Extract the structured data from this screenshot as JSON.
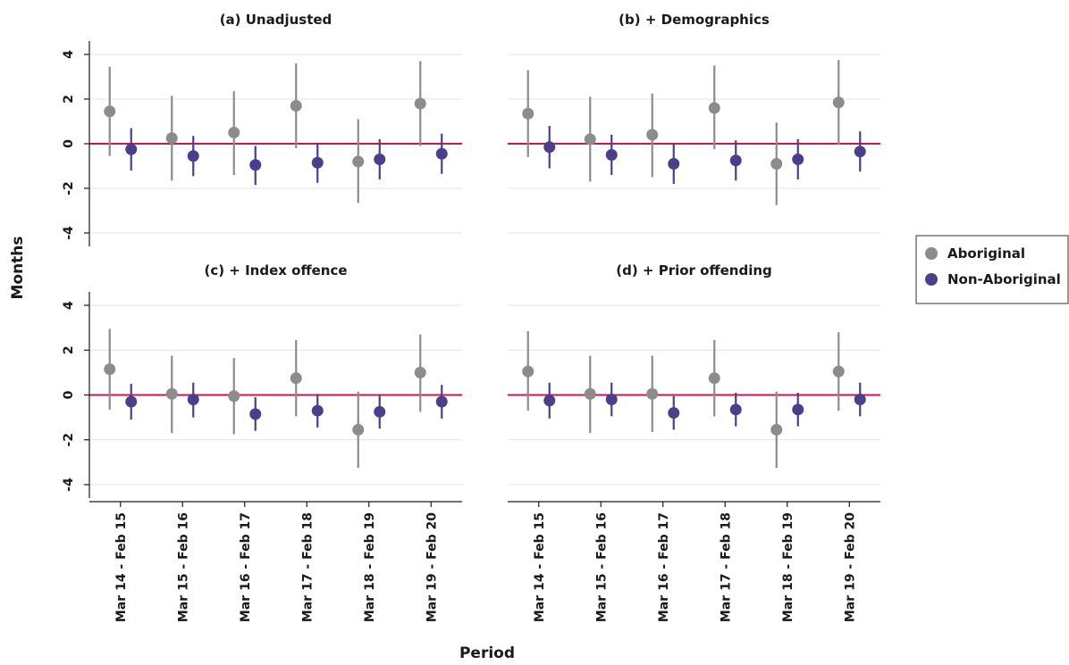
{
  "chart_data": {
    "type": "scatter",
    "subtype": "point-with-error-bars",
    "ylabel": "Months",
    "xlabel": "Period",
    "ylim": [
      -4.6,
      4.6
    ],
    "yticks": [
      -4,
      -2,
      0,
      2,
      4
    ],
    "ytick_labels": [
      "-4",
      "-2",
      "0",
      "2",
      "4"
    ],
    "categories": [
      "Mar 14 - Feb 15",
      "Mar 15 - Feb 16",
      "Mar 16 - Feb 17",
      "Mar 17 - Feb 18",
      "Mar 18 - Feb 19",
      "Mar 19 - Feb 20"
    ],
    "reference_line": 0,
    "grid": true,
    "legend_position": "right",
    "colors": {
      "Aboriginal": "#8c8c8c",
      "Non-Aboriginal": "#4b3f8c",
      "reference": "#c8174f",
      "grid": "#e4e4e4",
      "axis": "#1a1a1a"
    },
    "legend": [
      "Aboriginal",
      "Non-Aboriginal"
    ],
    "panels": [
      {
        "title": "(a) Unadjusted",
        "series": [
          {
            "name": "Aboriginal",
            "values": [
              1.45,
              0.25,
              0.5,
              1.7,
              -0.8,
              1.8
            ],
            "lower": [
              -0.55,
              -1.65,
              -1.4,
              -0.2,
              -2.65,
              -0.1
            ],
            "upper": [
              3.45,
              2.15,
              2.35,
              3.6,
              1.1,
              3.7
            ]
          },
          {
            "name": "Non-Aboriginal",
            "values": [
              -0.25,
              -0.55,
              -0.95,
              -0.85,
              -0.7,
              -0.45
            ],
            "lower": [
              -1.2,
              -1.45,
              -1.85,
              -1.75,
              -1.6,
              -1.35
            ],
            "upper": [
              0.7,
              0.35,
              -0.1,
              0.05,
              0.2,
              0.45
            ]
          }
        ]
      },
      {
        "title": "(b) + Demographics",
        "series": [
          {
            "name": "Aboriginal",
            "values": [
              1.35,
              0.2,
              0.4,
              1.6,
              -0.9,
              1.85
            ],
            "lower": [
              -0.6,
              -1.7,
              -1.5,
              -0.25,
              -2.75,
              -0.05
            ],
            "upper": [
              3.3,
              2.1,
              2.25,
              3.5,
              0.95,
              3.75
            ]
          },
          {
            "name": "Non-Aboriginal",
            "values": [
              -0.15,
              -0.5,
              -0.9,
              -0.75,
              -0.7,
              -0.35
            ],
            "lower": [
              -1.1,
              -1.4,
              -1.8,
              -1.65,
              -1.6,
              -1.25
            ],
            "upper": [
              0.8,
              0.4,
              0.0,
              0.15,
              0.2,
              0.55
            ]
          }
        ]
      },
      {
        "title": "(c) + Index offence",
        "series": [
          {
            "name": "Aboriginal",
            "values": [
              1.15,
              0.05,
              -0.05,
              0.75,
              -1.55,
              1.0
            ],
            "lower": [
              -0.65,
              -1.7,
              -1.75,
              -0.95,
              -3.25,
              -0.75
            ],
            "upper": [
              2.95,
              1.75,
              1.65,
              2.45,
              0.15,
              2.7
            ]
          },
          {
            "name": "Non-Aboriginal",
            "values": [
              -0.3,
              -0.2,
              -0.85,
              -0.7,
              -0.75,
              -0.3
            ],
            "lower": [
              -1.1,
              -1.0,
              -1.6,
              -1.45,
              -1.5,
              -1.05
            ],
            "upper": [
              0.5,
              0.55,
              -0.1,
              0.05,
              0.0,
              0.45
            ]
          }
        ]
      },
      {
        "title": "(d) + Prior offending",
        "series": [
          {
            "name": "Aboriginal",
            "values": [
              1.05,
              0.05,
              0.05,
              0.75,
              -1.55,
              1.05
            ],
            "lower": [
              -0.7,
              -1.7,
              -1.65,
              -0.95,
              -3.25,
              -0.7
            ],
            "upper": [
              2.85,
              1.75,
              1.75,
              2.45,
              0.15,
              2.8
            ]
          },
          {
            "name": "Non-Aboriginal",
            "values": [
              -0.25,
              -0.2,
              -0.8,
              -0.65,
              -0.65,
              -0.2
            ],
            "lower": [
              -1.05,
              -0.95,
              -1.55,
              -1.4,
              -1.4,
              -0.95
            ],
            "upper": [
              0.55,
              0.55,
              -0.05,
              0.1,
              0.1,
              0.55
            ]
          }
        ]
      }
    ]
  }
}
